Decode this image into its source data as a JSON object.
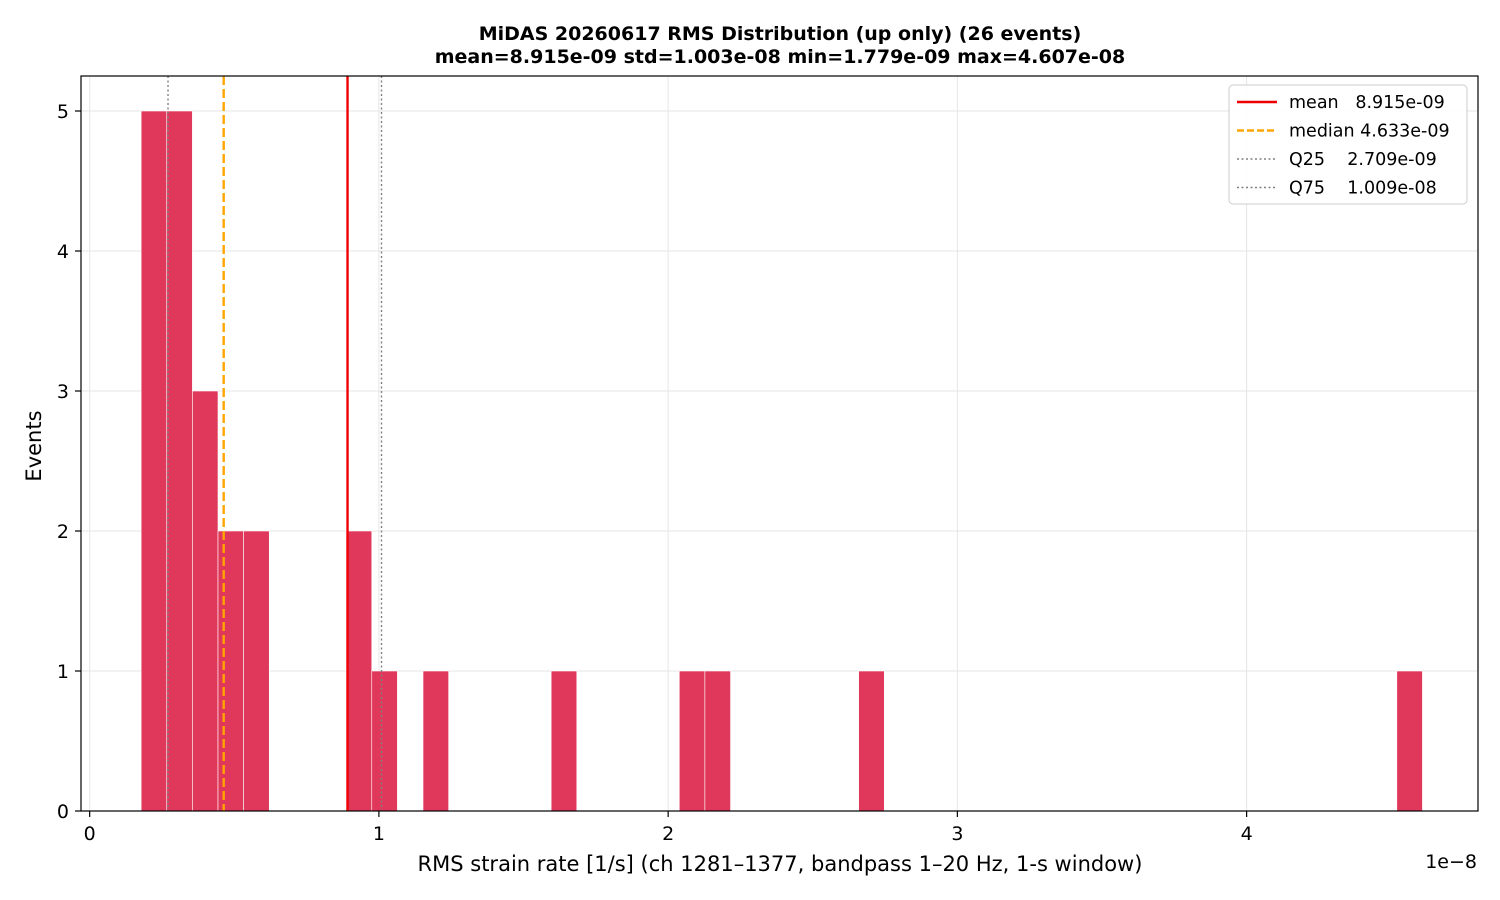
{
  "chart_data": {
    "type": "bar",
    "title": "MiDAS 20260617  RMS Distribution  (up only)  (26 events)",
    "subtitle": "mean=8.915e-09  std=1.003e-08  min=1.779e-09  max=4.607e-08",
    "xlabel": "RMS strain rate [1/s]  (ch 1281–1377, bandpass 1–20 Hz, 1-s window)",
    "ylabel": "Events",
    "x_offset_label": "1e−8",
    "xlim": [
      -0.03,
      4.8
    ],
    "ylim": [
      0,
      5.25
    ],
    "x_ticks": [
      0,
      1,
      2,
      3,
      4
    ],
    "x_tick_labels": [
      "0",
      "1",
      "2",
      "3",
      "4"
    ],
    "y_ticks": [
      0,
      1,
      2,
      3,
      4,
      5
    ],
    "y_tick_labels": [
      "0",
      "1",
      "2",
      "3",
      "4",
      "5"
    ],
    "grid": true,
    "bin_width": 0.0886,
    "bins": [
      {
        "x0": 0.1779,
        "count": 5
      },
      {
        "x0": 0.2665,
        "count": 5
      },
      {
        "x0": 0.3551,
        "count": 3
      },
      {
        "x0": 0.4437,
        "count": 2
      },
      {
        "x0": 0.5323,
        "count": 2
      },
      {
        "x0": 0.8867,
        "count": 2
      },
      {
        "x0": 0.9753,
        "count": 1
      },
      {
        "x0": 1.1525,
        "count": 1
      },
      {
        "x0": 1.5955,
        "count": 1
      },
      {
        "x0": 2.0385,
        "count": 1
      },
      {
        "x0": 2.1271,
        "count": 1
      },
      {
        "x0": 2.6587,
        "count": 1
      },
      {
        "x0": 4.5193,
        "count": 1
      }
    ],
    "bar_color": "#e0385a",
    "reference_lines": [
      {
        "key": "mean",
        "label": "mean   8.915e-09",
        "value": 0.8915,
        "color": "#ee0000",
        "style": "solid"
      },
      {
        "key": "median",
        "label": "median 4.633e-09",
        "value": 0.4633,
        "color": "#ffa500",
        "style": "dashed"
      },
      {
        "key": "q25",
        "label": "Q25    2.709e-09",
        "value": 0.2709,
        "color": "#808080",
        "style": "dotted"
      },
      {
        "key": "q75",
        "label": "Q75    1.009e-08",
        "value": 1.009,
        "color": "#808080",
        "style": "dotted"
      }
    ],
    "legend_placement": "top-right"
  }
}
